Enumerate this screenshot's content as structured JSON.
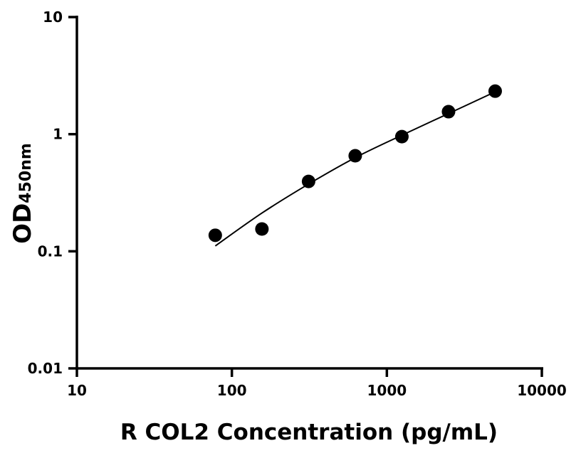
{
  "chart_data": {
    "type": "scatter",
    "title": "",
    "xlabel": "R COL2 Concentration (pg/mL)",
    "ylabel_main": "OD",
    "ylabel_sub": "450nm",
    "x_scale": "log",
    "y_scale": "log",
    "xlim": [
      10,
      10000
    ],
    "ylim": [
      0.01,
      10
    ],
    "x_ticks": [
      {
        "v": 10,
        "label": "10"
      },
      {
        "v": 100,
        "label": "100"
      },
      {
        "v": 1000,
        "label": "1000"
      },
      {
        "v": 10000,
        "label": "10000"
      }
    ],
    "y_ticks": [
      {
        "v": 0.01,
        "label": "0.01"
      },
      {
        "v": 0.1,
        "label": "0.1"
      },
      {
        "v": 1,
        "label": "1"
      },
      {
        "v": 10,
        "label": "10"
      }
    ],
    "grid": false,
    "points": [
      {
        "x": 78.125,
        "y": 0.137
      },
      {
        "x": 156.25,
        "y": 0.155
      },
      {
        "x": 312.5,
        "y": 0.395
      },
      {
        "x": 625,
        "y": 0.654
      },
      {
        "x": 1250,
        "y": 0.953
      },
      {
        "x": 2500,
        "y": 1.556
      },
      {
        "x": 5000,
        "y": 2.33
      }
    ],
    "fit_curve": [
      {
        "x": 78.125,
        "y": 0.111
      },
      {
        "x": 156.25,
        "y": 0.212
      },
      {
        "x": 312.5,
        "y": 0.375
      },
      {
        "x": 625,
        "y": 0.63
      },
      {
        "x": 1250,
        "y": 0.98
      },
      {
        "x": 2500,
        "y": 1.5
      },
      {
        "x": 5000,
        "y": 2.3
      }
    ],
    "colors": {
      "points": "#000000",
      "curve": "#000000",
      "axes": "#000000"
    }
  }
}
